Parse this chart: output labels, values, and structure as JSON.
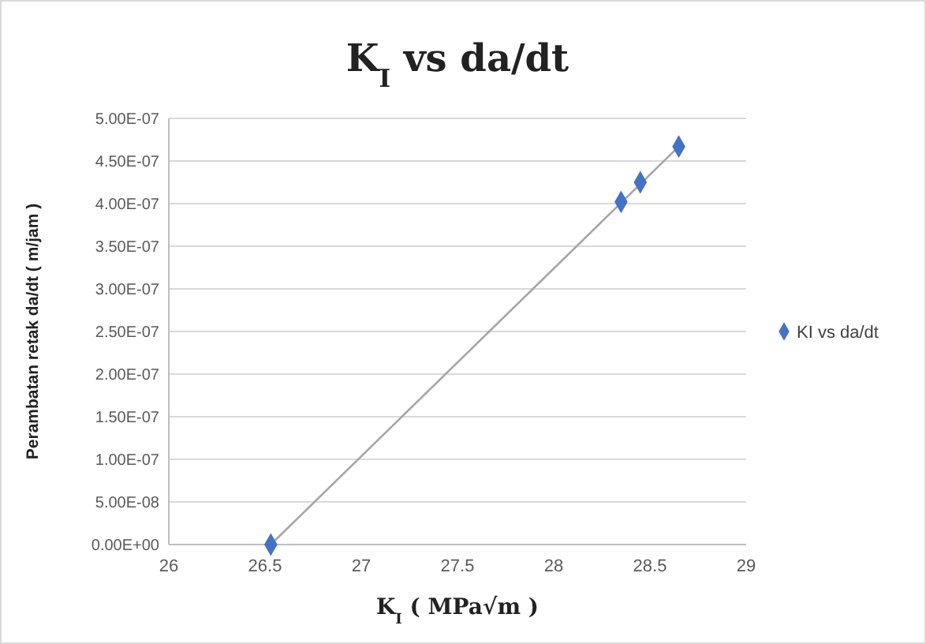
{
  "chart_data": {
    "type": "scatter",
    "title": "K$_{I}$ vs da/dt",
    "xlabel": "K$_{I}$ ( MPa√m )",
    "ylabel": "Perambatan retak da/dt ( m/jam )",
    "series": [
      {
        "type": "line",
        "color": "#a6a6a6",
        "x": [
          26.53,
          28.65
        ],
        "values": [
          0,
          4.67e-07
        ],
        "marker": "none"
      },
      {
        "name": "KI vs da/dt",
        "color": "#4472c4",
        "x": [
          26.53,
          28.35,
          28.45,
          28.65
        ],
        "values": [
          0,
          4.02e-07,
          4.25e-07,
          4.67e-07
        ],
        "marker": "diamond"
      }
    ],
    "xlim": [
      26,
      29
    ],
    "xticks": [
      26,
      26.5,
      27,
      27.5,
      28,
      28.5,
      29
    ],
    "ylim": [
      0,
      5e-07
    ],
    "yticks": [
      {
        "value": 0,
        "label": "0.00E+00"
      },
      {
        "value": 5e-08,
        "label": "5.00E-08"
      },
      {
        "value": 1e-07,
        "label": "1.00E-07"
      },
      {
        "value": 1.5e-07,
        "label": "1.50E-07"
      },
      {
        "value": 2e-07,
        "label": "2.00E-07"
      },
      {
        "value": 2.5e-07,
        "label": "2.50E-07"
      },
      {
        "value": 3e-07,
        "label": "3.00E-07"
      },
      {
        "value": 3.5e-07,
        "label": "3.50E-07"
      },
      {
        "value": 4e-07,
        "label": "4.00E-07"
      },
      {
        "value": 4.5e-07,
        "label": "4.50E-07"
      },
      {
        "value": 5e-07,
        "label": "5.00E-07"
      }
    ],
    "grid": "y",
    "legend": "right"
  }
}
